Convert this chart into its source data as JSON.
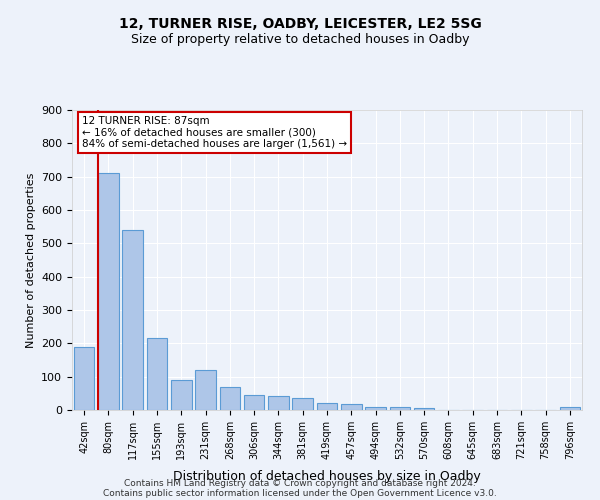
{
  "title1": "12, TURNER RISE, OADBY, LEICESTER, LE2 5SG",
  "title2": "Size of property relative to detached houses in Oadby",
  "xlabel": "Distribution of detached houses by size in Oadby",
  "ylabel": "Number of detached properties",
  "bar_color": "#aec6e8",
  "bar_edge_color": "#5b9bd5",
  "categories": [
    "42sqm",
    "80sqm",
    "117sqm",
    "155sqm",
    "193sqm",
    "231sqm",
    "268sqm",
    "306sqm",
    "344sqm",
    "381sqm",
    "419sqm",
    "457sqm",
    "494sqm",
    "532sqm",
    "570sqm",
    "608sqm",
    "645sqm",
    "683sqm",
    "721sqm",
    "758sqm",
    "796sqm"
  ],
  "values": [
    190,
    710,
    540,
    215,
    90,
    120,
    70,
    45,
    42,
    35,
    20,
    18,
    10,
    10,
    5,
    0,
    0,
    0,
    0,
    0,
    10
  ],
  "ylim": [
    0,
    900
  ],
  "yticks": [
    0,
    100,
    200,
    300,
    400,
    500,
    600,
    700,
    800,
    900
  ],
  "annotation_line1": "12 TURNER RISE: 87sqm",
  "annotation_line2": "← 16% of detached houses are smaller (300)",
  "annotation_line3": "84% of semi-detached houses are larger (1,561) →",
  "vline_bar_index": 1,
  "footer1": "Contains HM Land Registry data © Crown copyright and database right 2024.",
  "footer2": "Contains public sector information licensed under the Open Government Licence v3.0.",
  "background_color": "#edf2fa",
  "plot_bg_color": "#edf2fa",
  "grid_color": "#ffffff",
  "annotation_box_facecolor": "#ffffff",
  "annotation_border_color": "#cc0000",
  "title1_fontsize": 10,
  "title2_fontsize": 9,
  "ylabel_fontsize": 8,
  "xlabel_fontsize": 9,
  "tick_fontsize": 7,
  "ytick_fontsize": 8,
  "footer_fontsize": 6.5
}
